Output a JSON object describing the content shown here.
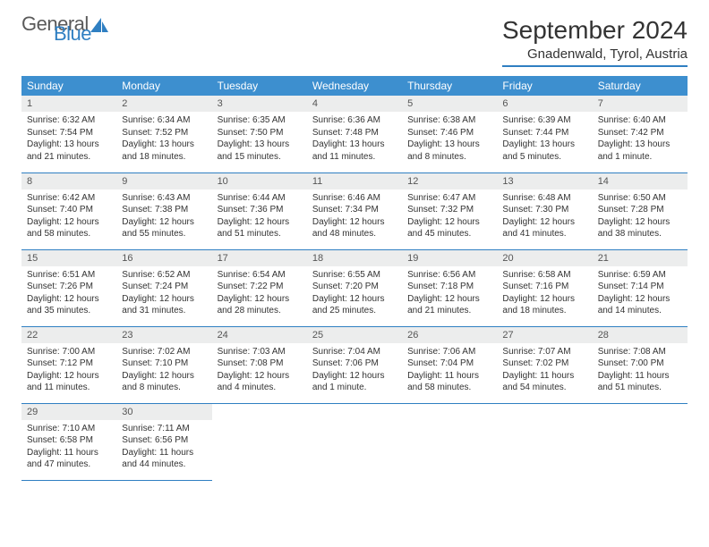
{
  "logo": {
    "text1": "General",
    "text2": "Blue"
  },
  "title": "September 2024",
  "location": "Gnadenwald, Tyrol, Austria",
  "weekdays": [
    "Sunday",
    "Monday",
    "Tuesday",
    "Wednesday",
    "Thursday",
    "Friday",
    "Saturday"
  ],
  "header_bg": "#3d8fcf",
  "accent": "#2f7fc2",
  "daynum_bg": "#eceded",
  "days": [
    {
      "n": "1",
      "sr": "Sunrise: 6:32 AM",
      "ss": "Sunset: 7:54 PM",
      "dl1": "Daylight: 13 hours",
      "dl2": "and 21 minutes."
    },
    {
      "n": "2",
      "sr": "Sunrise: 6:34 AM",
      "ss": "Sunset: 7:52 PM",
      "dl1": "Daylight: 13 hours",
      "dl2": "and 18 minutes."
    },
    {
      "n": "3",
      "sr": "Sunrise: 6:35 AM",
      "ss": "Sunset: 7:50 PM",
      "dl1": "Daylight: 13 hours",
      "dl2": "and 15 minutes."
    },
    {
      "n": "4",
      "sr": "Sunrise: 6:36 AM",
      "ss": "Sunset: 7:48 PM",
      "dl1": "Daylight: 13 hours",
      "dl2": "and 11 minutes."
    },
    {
      "n": "5",
      "sr": "Sunrise: 6:38 AM",
      "ss": "Sunset: 7:46 PM",
      "dl1": "Daylight: 13 hours",
      "dl2": "and 8 minutes."
    },
    {
      "n": "6",
      "sr": "Sunrise: 6:39 AM",
      "ss": "Sunset: 7:44 PM",
      "dl1": "Daylight: 13 hours",
      "dl2": "and 5 minutes."
    },
    {
      "n": "7",
      "sr": "Sunrise: 6:40 AM",
      "ss": "Sunset: 7:42 PM",
      "dl1": "Daylight: 13 hours",
      "dl2": "and 1 minute."
    },
    {
      "n": "8",
      "sr": "Sunrise: 6:42 AM",
      "ss": "Sunset: 7:40 PM",
      "dl1": "Daylight: 12 hours",
      "dl2": "and 58 minutes."
    },
    {
      "n": "9",
      "sr": "Sunrise: 6:43 AM",
      "ss": "Sunset: 7:38 PM",
      "dl1": "Daylight: 12 hours",
      "dl2": "and 55 minutes."
    },
    {
      "n": "10",
      "sr": "Sunrise: 6:44 AM",
      "ss": "Sunset: 7:36 PM",
      "dl1": "Daylight: 12 hours",
      "dl2": "and 51 minutes."
    },
    {
      "n": "11",
      "sr": "Sunrise: 6:46 AM",
      "ss": "Sunset: 7:34 PM",
      "dl1": "Daylight: 12 hours",
      "dl2": "and 48 minutes."
    },
    {
      "n": "12",
      "sr": "Sunrise: 6:47 AM",
      "ss": "Sunset: 7:32 PM",
      "dl1": "Daylight: 12 hours",
      "dl2": "and 45 minutes."
    },
    {
      "n": "13",
      "sr": "Sunrise: 6:48 AM",
      "ss": "Sunset: 7:30 PM",
      "dl1": "Daylight: 12 hours",
      "dl2": "and 41 minutes."
    },
    {
      "n": "14",
      "sr": "Sunrise: 6:50 AM",
      "ss": "Sunset: 7:28 PM",
      "dl1": "Daylight: 12 hours",
      "dl2": "and 38 minutes."
    },
    {
      "n": "15",
      "sr": "Sunrise: 6:51 AM",
      "ss": "Sunset: 7:26 PM",
      "dl1": "Daylight: 12 hours",
      "dl2": "and 35 minutes."
    },
    {
      "n": "16",
      "sr": "Sunrise: 6:52 AM",
      "ss": "Sunset: 7:24 PM",
      "dl1": "Daylight: 12 hours",
      "dl2": "and 31 minutes."
    },
    {
      "n": "17",
      "sr": "Sunrise: 6:54 AM",
      "ss": "Sunset: 7:22 PM",
      "dl1": "Daylight: 12 hours",
      "dl2": "and 28 minutes."
    },
    {
      "n": "18",
      "sr": "Sunrise: 6:55 AM",
      "ss": "Sunset: 7:20 PM",
      "dl1": "Daylight: 12 hours",
      "dl2": "and 25 minutes."
    },
    {
      "n": "19",
      "sr": "Sunrise: 6:56 AM",
      "ss": "Sunset: 7:18 PM",
      "dl1": "Daylight: 12 hours",
      "dl2": "and 21 minutes."
    },
    {
      "n": "20",
      "sr": "Sunrise: 6:58 AM",
      "ss": "Sunset: 7:16 PM",
      "dl1": "Daylight: 12 hours",
      "dl2": "and 18 minutes."
    },
    {
      "n": "21",
      "sr": "Sunrise: 6:59 AM",
      "ss": "Sunset: 7:14 PM",
      "dl1": "Daylight: 12 hours",
      "dl2": "and 14 minutes."
    },
    {
      "n": "22",
      "sr": "Sunrise: 7:00 AM",
      "ss": "Sunset: 7:12 PM",
      "dl1": "Daylight: 12 hours",
      "dl2": "and 11 minutes."
    },
    {
      "n": "23",
      "sr": "Sunrise: 7:02 AM",
      "ss": "Sunset: 7:10 PM",
      "dl1": "Daylight: 12 hours",
      "dl2": "and 8 minutes."
    },
    {
      "n": "24",
      "sr": "Sunrise: 7:03 AM",
      "ss": "Sunset: 7:08 PM",
      "dl1": "Daylight: 12 hours",
      "dl2": "and 4 minutes."
    },
    {
      "n": "25",
      "sr": "Sunrise: 7:04 AM",
      "ss": "Sunset: 7:06 PM",
      "dl1": "Daylight: 12 hours",
      "dl2": "and 1 minute."
    },
    {
      "n": "26",
      "sr": "Sunrise: 7:06 AM",
      "ss": "Sunset: 7:04 PM",
      "dl1": "Daylight: 11 hours",
      "dl2": "and 58 minutes."
    },
    {
      "n": "27",
      "sr": "Sunrise: 7:07 AM",
      "ss": "Sunset: 7:02 PM",
      "dl1": "Daylight: 11 hours",
      "dl2": "and 54 minutes."
    },
    {
      "n": "28",
      "sr": "Sunrise: 7:08 AM",
      "ss": "Sunset: 7:00 PM",
      "dl1": "Daylight: 11 hours",
      "dl2": "and 51 minutes."
    },
    {
      "n": "29",
      "sr": "Sunrise: 7:10 AM",
      "ss": "Sunset: 6:58 PM",
      "dl1": "Daylight: 11 hours",
      "dl2": "and 47 minutes."
    },
    {
      "n": "30",
      "sr": "Sunrise: 7:11 AM",
      "ss": "Sunset: 6:56 PM",
      "dl1": "Daylight: 11 hours",
      "dl2": "and 44 minutes."
    }
  ]
}
